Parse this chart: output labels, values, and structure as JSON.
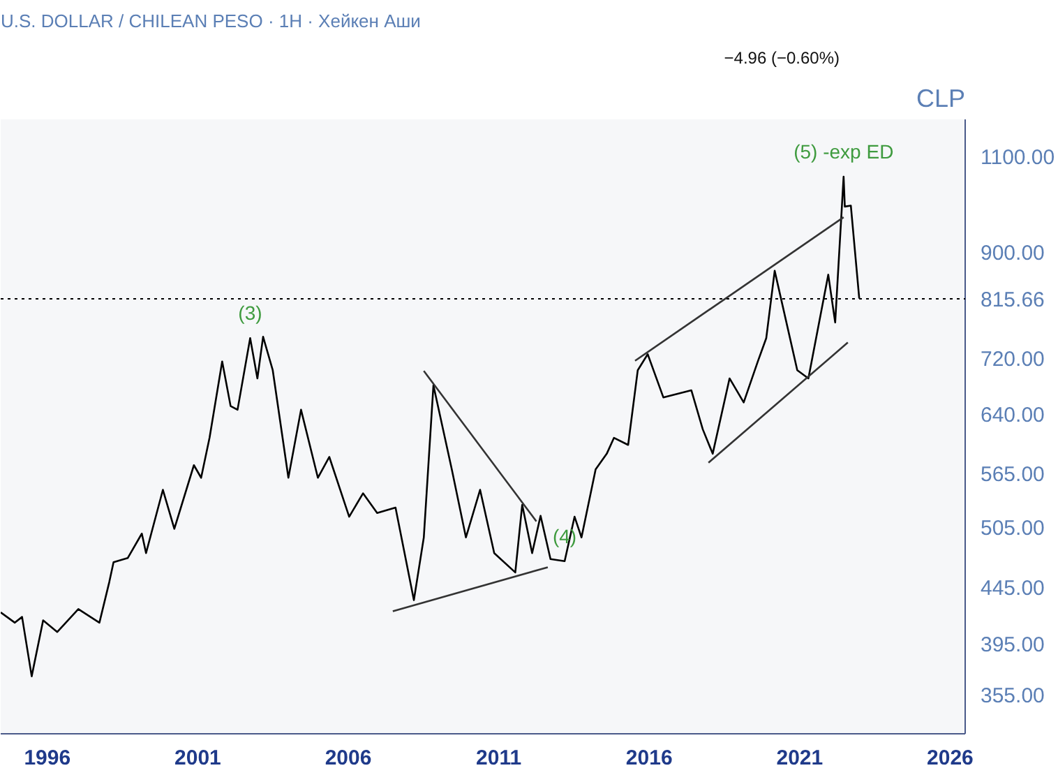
{
  "chart_data": {
    "type": "line",
    "title": "U.S. DOLLAR / CHILEAN PESO · 1H · Хейкен Аши",
    "subtitle": "−4.96 (−0.60%)",
    "ylabel": "CLP",
    "log": "y",
    "xlim": [
      1994.45,
      2026.5
    ],
    "ylim": [
      327,
      1189
    ],
    "xticks": [
      1996,
      2001,
      2006,
      2011,
      2016,
      2021,
      2026
    ],
    "yticks": [
      {
        "value": 355,
        "label": "355.00"
      },
      {
        "value": 395,
        "label": "395.00"
      },
      {
        "value": 445,
        "label": "445.00"
      },
      {
        "value": 505,
        "label": "505.00"
      },
      {
        "value": 565,
        "label": "565.00"
      },
      {
        "value": 640,
        "label": "640.00"
      },
      {
        "value": 720,
        "label": "720.00"
      },
      {
        "value": 900,
        "label": "900.00"
      },
      {
        "value": 1100,
        "label": "1100.00"
      }
    ],
    "series": [
      {
        "color": "#000000",
        "x": [
          1994.45,
          1994.92,
          1995.16,
          1995.48,
          1995.86,
          1996.33,
          1997.03,
          1997.73,
          1998.06,
          1998.2,
          1998.67,
          1999.14,
          1999.28,
          1999.84,
          2000.22,
          2000.87,
          2001.11,
          2001.39,
          2001.81,
          2002.09,
          2002.32,
          2002.74,
          2002.98,
          2003.17,
          2003.49,
          2004.01,
          2004.43,
          2004.99,
          2005.37,
          2006.03,
          2006.49,
          2006.96,
          2007.57,
          2008.18,
          2008.51,
          2008.83,
          2009.44,
          2009.91,
          2010.38,
          2010.85,
          2011.55,
          2011.78,
          2012.11,
          2012.39,
          2012.72,
          2013.19,
          2013.52,
          2013.75,
          2014.22,
          2014.59,
          2014.83,
          2015.3,
          2015.62,
          2015.95,
          2016.47,
          2017.4,
          2017.78,
          2018.11,
          2018.67,
          2019.14,
          2019.61,
          2019.89,
          2020.17,
          2020.92,
          2021.29,
          2021.95,
          2022.18,
          2022.46,
          2022.5,
          2022.7,
          2022.98
        ],
        "values": [
          422,
          413,
          418,
          369,
          415,
          405,
          425,
          413,
          450,
          469,
          473,
          498,
          478,
          546,
          503,
          575,
          560,
          609,
          715,
          651,
          646,
          751,
          690,
          753,
          702,
          560,
          646,
          560,
          585,
          516,
          542,
          520,
          526,
          433,
          494,
          680,
          570,
          494,
          546,
          478,
          459,
          529,
          478,
          517,
          472,
          470,
          516,
          494,
          570,
          589,
          609,
          600,
          702,
          726,
          663,
          673,
          620,
          589,
          690,
          656,
          715,
          751,
          865,
          702,
          690,
          858,
          776,
          1054,
          990,
          992,
          816
        ]
      },
      {
        "color": "#333333",
        "x": [
          2008.51,
          2012.25
        ],
        "values": [
          701,
          511
        ]
      },
      {
        "color": "#333333",
        "x": [
          2007.48,
          2012.63
        ],
        "values": [
          423,
          464
        ]
      },
      {
        "color": "#333333",
        "x": [
          2015.53,
          2022.46
        ],
        "values": [
          716,
          968
        ]
      },
      {
        "color": "#333333",
        "x": [
          2017.97,
          2022.6
        ],
        "values": [
          578,
          744
        ]
      }
    ],
    "ref_lines": [
      {
        "axis": "y",
        "value": 815.66,
        "label": "815.66",
        "color": "#000000"
      }
    ],
    "annotations": [
      {
        "text": "(3)",
        "x": 2002.74,
        "y": 751
      },
      {
        "text": "(4)",
        "x": 2013.19,
        "y": 470
      },
      {
        "text": "(5) -exp ED",
        "x": 2022.46,
        "y": 1054
      }
    ]
  }
}
